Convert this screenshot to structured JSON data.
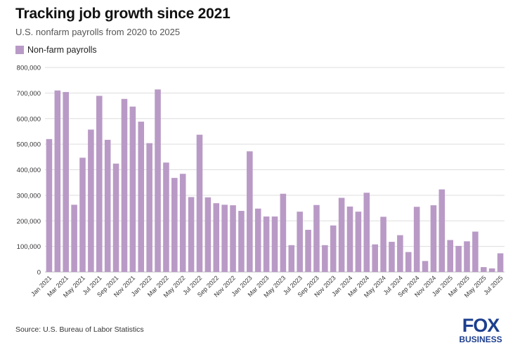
{
  "header": {
    "title": "Tracking job growth since 2021",
    "subtitle": "U.S. nonfarm payrolls from 2020 to 2025"
  },
  "legend": {
    "label": "Non-farm payrolls"
  },
  "footer": {
    "source": "Source: U.S. Bureau of Labor Statistics"
  },
  "logo": {
    "line1": "FOX",
    "line2": "BUSINESS"
  },
  "colors": {
    "bar": "#b99ac6",
    "grid": "#dddddd",
    "axis_text": "#333333",
    "logo_blue": "#1d3f8f"
  },
  "chart_data": {
    "type": "bar",
    "title": "Tracking job growth since 2021",
    "subtitle": "U.S. nonfarm payrolls from 2020 to 2025",
    "series_name": "Non-farm payrolls",
    "xlabel": "",
    "ylabel": "",
    "ylim": [
      0,
      800000
    ],
    "yticks": [
      0,
      100000,
      200000,
      300000,
      400000,
      500000,
      600000,
      700000,
      800000
    ],
    "ytick_labels": [
      "0",
      "100,000",
      "200,000",
      "300,000",
      "400,000",
      "500,000",
      "600,000",
      "700,000",
      "800,000"
    ],
    "grid": true,
    "legend_position": "top-left",
    "categories": [
      "Jan 2021",
      "Feb 2021",
      "Mar 2021",
      "Apr 2021",
      "May 2021",
      "Jun 2021",
      "Jul 2021",
      "Aug 2021",
      "Sep 2021",
      "Oct 2021",
      "Nov 2021",
      "Dec 2021",
      "Jan 2022",
      "Feb 2022",
      "Mar 2022",
      "Apr 2022",
      "May 2022",
      "Jun 2022",
      "Jul 2022",
      "Aug 2022",
      "Sep 2022",
      "Oct 2022",
      "Nov 2022",
      "Dec 2022",
      "Jan 2023",
      "Feb 2023",
      "Mar 2023",
      "Apr 2023",
      "May 2023",
      "Jun 2023",
      "Jul 2023",
      "Aug 2023",
      "Sep 2023",
      "Oct 2023",
      "Nov 2023",
      "Dec 2023",
      "Jan 2024",
      "Feb 2024",
      "Mar 2024",
      "Apr 2024",
      "May 2024",
      "Jun 2024",
      "Jul 2024",
      "Aug 2024",
      "Sep 2024",
      "Oct 2024",
      "Nov 2024",
      "Dec 2024",
      "Jan 2025",
      "Feb 2025",
      "Mar 2025",
      "Apr 2025",
      "May 2025",
      "Jun 2025",
      "Jul 2025"
    ],
    "tick_labels": [
      "Jan 2021",
      "Mar 2021",
      "May 2021",
      "Jul 2021",
      "Sep 2021",
      "Nov 2021",
      "Jan 2022",
      "Mar 2022",
      "May 2022",
      "Jul 2022",
      "Sep 2022",
      "Nov 2022",
      "Jan 2023",
      "Mar 2023",
      "May 2023",
      "Jul 2023",
      "Sep 2023",
      "Nov 2023",
      "Jan 2024",
      "Mar 2024",
      "May 2024",
      "Jul 2024",
      "Sep 2024",
      "Nov 2024",
      "Jan 2025",
      "Mar 2025",
      "May 2025",
      "Jul 2025"
    ],
    "values": [
      520000,
      710000,
      704000,
      263000,
      447000,
      557000,
      689000,
      517000,
      424000,
      677000,
      647000,
      588000,
      504000,
      714000,
      428000,
      368000,
      384000,
      293000,
      537000,
      292000,
      269000,
      263000,
      261000,
      239000,
      472000,
      248000,
      217000,
      217000,
      306000,
      105000,
      236000,
      165000,
      262000,
      105000,
      182000,
      290000,
      256000,
      236000,
      310000,
      108000,
      216000,
      118000,
      144000,
      78000,
      255000,
      43000,
      261000,
      323000,
      125000,
      102000,
      120000,
      158000,
      19000,
      14000,
      73000
    ]
  }
}
